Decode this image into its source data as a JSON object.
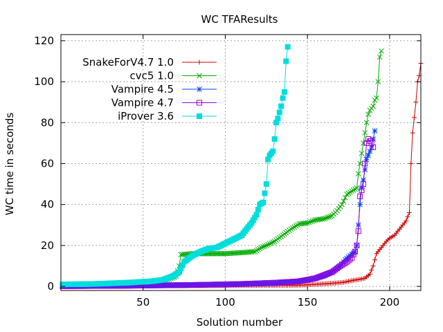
{
  "chart_data": {
    "type": "line",
    "title": "WC TFAResults",
    "xlabel": "Solution number",
    "ylabel": "WC time in seconds",
    "xlim": [
      0,
      219
    ],
    "ylim": [
      -2,
      123
    ],
    "xticks": [
      50,
      100,
      150,
      200
    ],
    "yticks": [
      0,
      20,
      40,
      60,
      80,
      100,
      120
    ],
    "grid": true,
    "legend": "top-left",
    "series": [
      {
        "name": "SnakeForV4.7 1.0",
        "color": "#cc0000",
        "marker": "plus",
        "points": [
          [
            1,
            0.1
          ],
          [
            30,
            0.2
          ],
          [
            60,
            0.3
          ],
          [
            100,
            0.4
          ],
          [
            130,
            0.5
          ],
          [
            145,
            0.6
          ],
          [
            150,
            0.8
          ],
          [
            155,
            1.0
          ],
          [
            165,
            1.5
          ],
          [
            172,
            2.0
          ],
          [
            178,
            3.0
          ],
          [
            182,
            3.5
          ],
          [
            185,
            4.0
          ],
          [
            188,
            6.0
          ],
          [
            190,
            10.0
          ],
          [
            192,
            16.0
          ],
          [
            194,
            18.0
          ],
          [
            196,
            20.0
          ],
          [
            198,
            22.0
          ],
          [
            200,
            23.5
          ],
          [
            203,
            25.0
          ],
          [
            205,
            27.0
          ],
          [
            208,
            30.0
          ],
          [
            210,
            32.0
          ],
          [
            211,
            34.0
          ],
          [
            212,
            36.0
          ],
          [
            213,
            60.0
          ],
          [
            214,
            75.0
          ],
          [
            216,
            90.0
          ],
          [
            217,
            100.0
          ],
          [
            218,
            103.0
          ],
          [
            219,
            109.0
          ]
        ]
      },
      {
        "name": "cvc5 1.0",
        "color": "#00aa00",
        "marker": "x",
        "points": [
          [
            1,
            0.1
          ],
          [
            30,
            0.5
          ],
          [
            50,
            1.0
          ],
          [
            60,
            2.0
          ],
          [
            65,
            3.0
          ],
          [
            70,
            5.0
          ],
          [
            72,
            10.0
          ],
          [
            73,
            15.5
          ],
          [
            80,
            16.0
          ],
          [
            100,
            16.0
          ],
          [
            110,
            16.5
          ],
          [
            118,
            17.0
          ],
          [
            122,
            19.0
          ],
          [
            125,
            20.0
          ],
          [
            130,
            22.0
          ],
          [
            135,
            25.0
          ],
          [
            140,
            28.0
          ],
          [
            145,
            30.5
          ],
          [
            150,
            31.0
          ],
          [
            155,
            32.5
          ],
          [
            160,
            33.0
          ],
          [
            165,
            34.5
          ],
          [
            168,
            37.0
          ],
          [
            171,
            40.0
          ],
          [
            174,
            45.0
          ],
          [
            178,
            47.0
          ],
          [
            180,
            48.0
          ],
          [
            181,
            55.0
          ],
          [
            182,
            60.0
          ],
          [
            183,
            65.0
          ],
          [
            184,
            70.0
          ],
          [
            185,
            75.0
          ],
          [
            186,
            80.0
          ],
          [
            187,
            84.0
          ],
          [
            188,
            86.0
          ],
          [
            190,
            88.0
          ],
          [
            191,
            91.0
          ],
          [
            192,
            92.0
          ],
          [
            193,
            100.0
          ],
          [
            194,
            112.0
          ],
          [
            195,
            115.0
          ]
        ]
      },
      {
        "name": "Vampire 4.5",
        "color": "#0044ff",
        "marker": "star",
        "points": [
          [
            1,
            0.1
          ],
          [
            50,
            0.3
          ],
          [
            100,
            0.8
          ],
          [
            130,
            1.5
          ],
          [
            150,
            3.0
          ],
          [
            160,
            5.0
          ],
          [
            165,
            7.0
          ],
          [
            170,
            10.0
          ],
          [
            173,
            13.0
          ],
          [
            176,
            15.0
          ],
          [
            179,
            17.0
          ],
          [
            180,
            20.0
          ],
          [
            181,
            30.0
          ],
          [
            182,
            40.0
          ],
          [
            183,
            48.0
          ],
          [
            184,
            52.0
          ],
          [
            185,
            57.0
          ],
          [
            186,
            62.0
          ],
          [
            187,
            64.0
          ],
          [
            188,
            66.0
          ],
          [
            189,
            68.0
          ],
          [
            190,
            72.0
          ],
          [
            191,
            76.0
          ]
        ]
      },
      {
        "name": "Vampire 4.7",
        "color": "#9900dd",
        "marker": "square",
        "points": [
          [
            1,
            0.1
          ],
          [
            40,
            0.3
          ],
          [
            80,
            0.7
          ],
          [
            110,
            1.2
          ],
          [
            130,
            1.8
          ],
          [
            145,
            2.5
          ],
          [
            155,
            4.0
          ],
          [
            160,
            5.5
          ],
          [
            165,
            7.0
          ],
          [
            170,
            10.0
          ],
          [
            174,
            12.0
          ],
          [
            177,
            14.0
          ],
          [
            179,
            17.0
          ],
          [
            180,
            20.0
          ],
          [
            181,
            27.0
          ],
          [
            182,
            44.0
          ],
          [
            183,
            47.0
          ],
          [
            184,
            50.0
          ],
          [
            185,
            60.0
          ],
          [
            186,
            70.0
          ],
          [
            187,
            72.0
          ],
          [
            188,
            71.0
          ],
          [
            189,
            70.0
          ],
          [
            190,
            68.0
          ]
        ]
      },
      {
        "name": "iProver 3.6",
        "color": "#00dddd",
        "marker": "filled-square",
        "points": [
          [
            1,
            1.0
          ],
          [
            20,
            1.2
          ],
          [
            40,
            1.8
          ],
          [
            55,
            2.5
          ],
          [
            62,
            3.2
          ],
          [
            68,
            5.0
          ],
          [
            72,
            7.0
          ],
          [
            75,
            12.0
          ],
          [
            80,
            15.0
          ],
          [
            85,
            17.0
          ],
          [
            90,
            18.5
          ],
          [
            95,
            19.0
          ],
          [
            100,
            21.0
          ],
          [
            105,
            23.0
          ],
          [
            110,
            25.0
          ],
          [
            113,
            28.0
          ],
          [
            116,
            31.0
          ],
          [
            119,
            35.0
          ],
          [
            121,
            40.0
          ],
          [
            123,
            41.0
          ],
          [
            125,
            50.0
          ],
          [
            126,
            62.0
          ],
          [
            127,
            64.0
          ],
          [
            129,
            66.0
          ],
          [
            130,
            72.0
          ],
          [
            131,
            80.0
          ],
          [
            132,
            82.0
          ],
          [
            133,
            85.0
          ],
          [
            134,
            88.0
          ],
          [
            135,
            92.0
          ],
          [
            136,
            95.0
          ],
          [
            137,
            110.0
          ],
          [
            138,
            117.0
          ]
        ]
      }
    ]
  }
}
